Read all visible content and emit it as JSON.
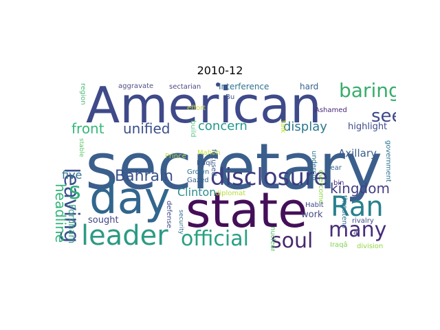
{
  "title": "2010-12",
  "words": [
    {
      "text": "secretary",
      "color": "#3b5f8c"
    },
    {
      "text": "American",
      "color": "#3e4a89"
    },
    {
      "text": "state",
      "color": "#440f58"
    },
    {
      "text": "day",
      "color": "#31668e"
    },
    {
      "text": "Ran",
      "color": "#27818d"
    },
    {
      "text": "leader",
      "color": "#2d9a84"
    },
    {
      "text": "disclosure",
      "color": "#3d3c80"
    },
    {
      "text": "official",
      "color": "#29a081"
    },
    {
      "text": "soul",
      "color": "#47286e"
    },
    {
      "text": "many",
      "color": "#472c7a"
    },
    {
      "text": "baring",
      "color": "#37ad6a"
    },
    {
      "text": "leaving",
      "color": "#3b4f8a"
    },
    {
      "text": "seem",
      "color": "#3f4889"
    },
    {
      "text": "s",
      "color": "#2db37b"
    },
    {
      "text": "Bahrain",
      "color": "#3b528b"
    },
    {
      "text": "kingdom",
      "color": "#433e85"
    },
    {
      "text": "unified",
      "color": "#3b4f8a"
    },
    {
      "text": "front",
      "color": "#35b779"
    },
    {
      "text": "concern",
      "color": "#23998b"
    },
    {
      "text": "display",
      "color": "#2a788e"
    },
    {
      "text": "headline",
      "color": "#32b67a"
    },
    {
      "text": "five",
      "color": "#2e6e8e"
    },
    {
      "text": "Clinton",
      "color": "#2c8d8b"
    },
    {
      "text": "Axillary",
      "color": "#3b5b8c"
    },
    {
      "text": "highlight",
      "color": "#3e4989"
    },
    {
      "text": "sought",
      "color": "#414487"
    },
    {
      "text": "work",
      "color": "#464a86"
    },
    {
      "text": "Fordham",
      "color": "#3b9f8a"
    },
    {
      "text": "Interference",
      "color": "#2c728e"
    },
    {
      "text": "hard",
      "color": "#355f8d"
    },
    {
      "text": "aggravate",
      "color": "#4f4f86"
    },
    {
      "text": "sectarian",
      "color": "#4c4781"
    },
    {
      "text": "region",
      "color": "#4fbb7a"
    },
    {
      "text": "stable",
      "color": "#5ec467"
    },
    {
      "text": "Bu",
      "color": "#3c5189"
    },
    {
      "text": "effort",
      "color": "#c9d842"
    },
    {
      "text": "build",
      "color": "#5ec48b"
    },
    {
      "text": "Mahan",
      "color": "#c7e23a"
    },
    {
      "text": "Prince",
      "color": "#bfdc50"
    },
    {
      "text": "Iraqi",
      "color": "#3b528b"
    },
    {
      "text": "Grown",
      "color": "#2e6e8e"
    },
    {
      "text": "Gazed",
      "color": "#35608d"
    },
    {
      "text": "diplomat",
      "color": "#b6dc3a"
    },
    {
      "text": "defense",
      "color": "#3e4a89"
    },
    {
      "text": "security",
      "color": "#2f6c8e"
    },
    {
      "text": "focused",
      "color": "#3b5a8c"
    },
    {
      "text": "nuclear",
      "color": "#53c568"
    },
    {
      "text": "talk",
      "color": "#c2df23"
    },
    {
      "text": "Ashamed",
      "color": "#472777"
    },
    {
      "text": "undercut",
      "color": "#2c738e"
    },
    {
      "text": "overcome",
      "color": "#8ed645"
    },
    {
      "text": "bin",
      "color": "#472d7b"
    },
    {
      "text": "fear",
      "color": "#33638d"
    },
    {
      "text": "Habit",
      "color": "#3e4a89"
    },
    {
      "text": "al",
      "color": "#404387"
    },
    {
      "text": "threatens",
      "color": "#2e6f8e"
    },
    {
      "text": "rivalry",
      "color": "#3e4a89"
    },
    {
      "text": "government",
      "color": "#2b748e"
    },
    {
      "text": "division",
      "color": "#93d741"
    },
    {
      "text": "Iraqâ",
      "color": "#7fd34e"
    }
  ]
}
